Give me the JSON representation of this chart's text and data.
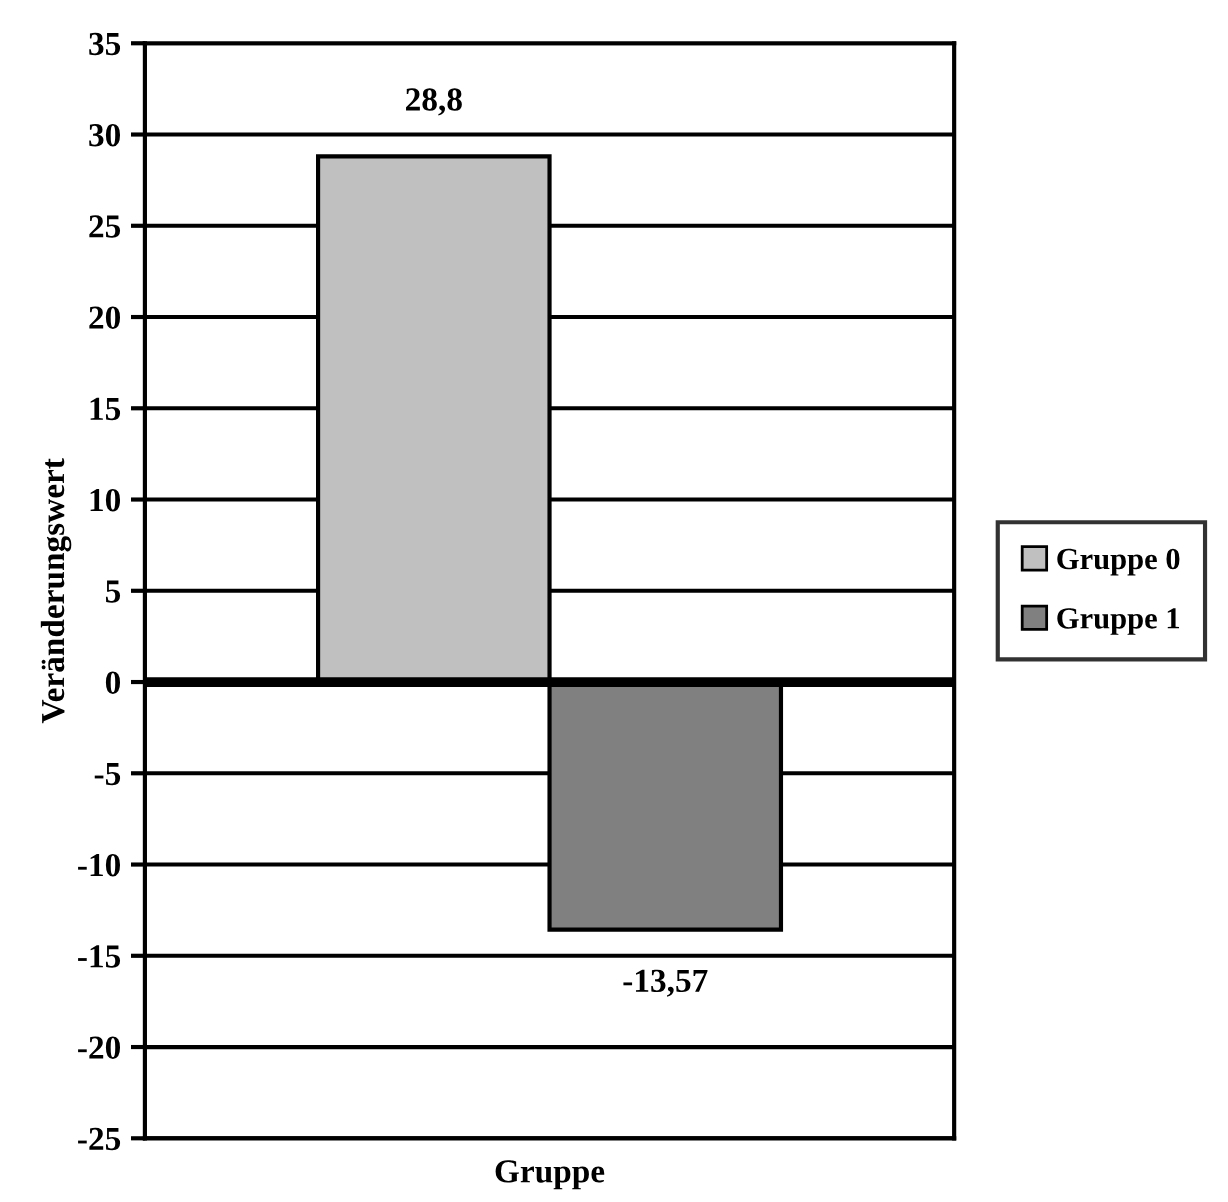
{
  "chart_data": {
    "type": "bar",
    "xlabel": "Gruppe",
    "ylabel": "Veränderungswert",
    "categories": [
      null
    ],
    "series": [
      {
        "name": "Gruppe 0",
        "color": "#c0c0c0",
        "values": [
          28.8
        ],
        "value_labels": [
          "28,8"
        ]
      },
      {
        "name": "Gruppe 1",
        "color": "#808080",
        "values": [
          -13.57
        ],
        "value_labels": [
          "-13,57"
        ]
      }
    ],
    "ylim": [
      -25,
      35
    ],
    "yticks": [
      -25,
      -20,
      -15,
      -10,
      -5,
      0,
      5,
      10,
      15,
      20,
      25,
      30,
      35
    ],
    "grid": "y",
    "legend": "right"
  }
}
